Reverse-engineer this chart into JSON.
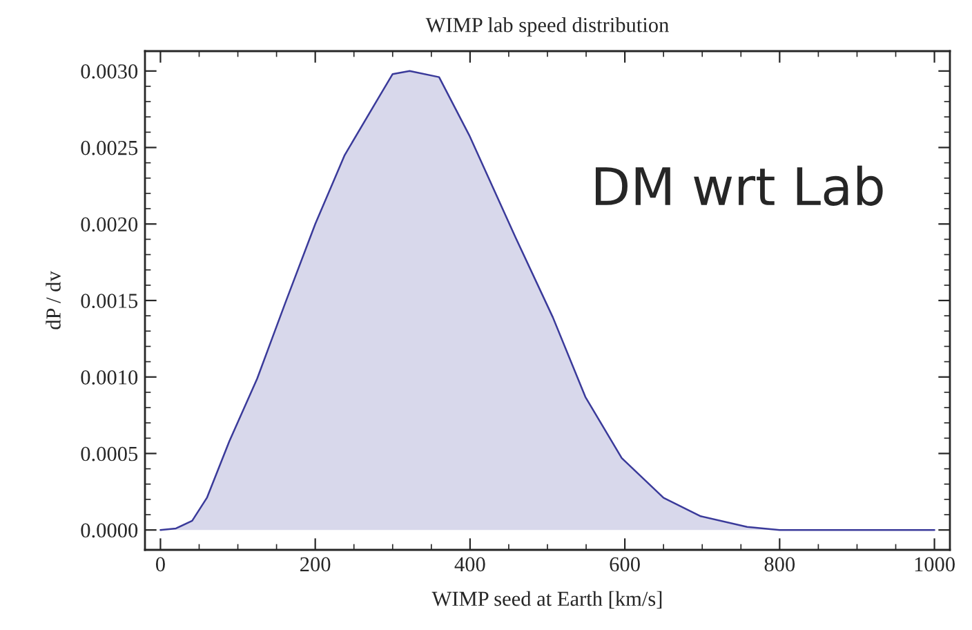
{
  "chart_data": {
    "type": "area",
    "title": "WIMP lab speed distribution",
    "xlabel": "WIMP seed at Earth [km/s]",
    "ylabel": "dP / dv",
    "annotations": [
      "DM wrt Lab"
    ],
    "x": [
      0,
      20,
      41,
      60,
      89,
      125,
      161,
      200,
      238,
      280,
      300,
      322,
      360,
      399,
      459,
      507,
      549,
      596,
      650,
      698,
      758,
      800,
      900,
      1000
    ],
    "series": [
      {
        "color": "#3a3a9a",
        "values": [
          0,
          1e-05,
          6e-05,
          0.00021,
          0.00058,
          0.00099,
          0.00148,
          0.002,
          0.00245,
          0.00281,
          0.00298,
          0.003,
          0.00296,
          0.00258,
          0.00191,
          0.00139,
          0.00087,
          0.00047,
          0.00021,
          9e-05,
          2e-05,
          0,
          0,
          0
        ]
      }
    ],
    "xlim": [
      -20,
      1020
    ],
    "ylim": [
      -0.00013,
      0.00313
    ],
    "xticks": [
      0,
      200,
      400,
      600,
      800,
      1000
    ],
    "yticks": [
      {
        "value": 0,
        "label": "0.0000"
      },
      {
        "value": 0.0005,
        "label": "0.0005"
      },
      {
        "value": 0.001,
        "label": "0.0010"
      },
      {
        "value": 0.0015,
        "label": "0.0015"
      },
      {
        "value": 0.002,
        "label": "0.0020"
      },
      {
        "value": 0.0025,
        "label": "0.0025"
      },
      {
        "value": 0.003,
        "label": "0.0030"
      }
    ],
    "grid": false,
    "legend": false
  }
}
